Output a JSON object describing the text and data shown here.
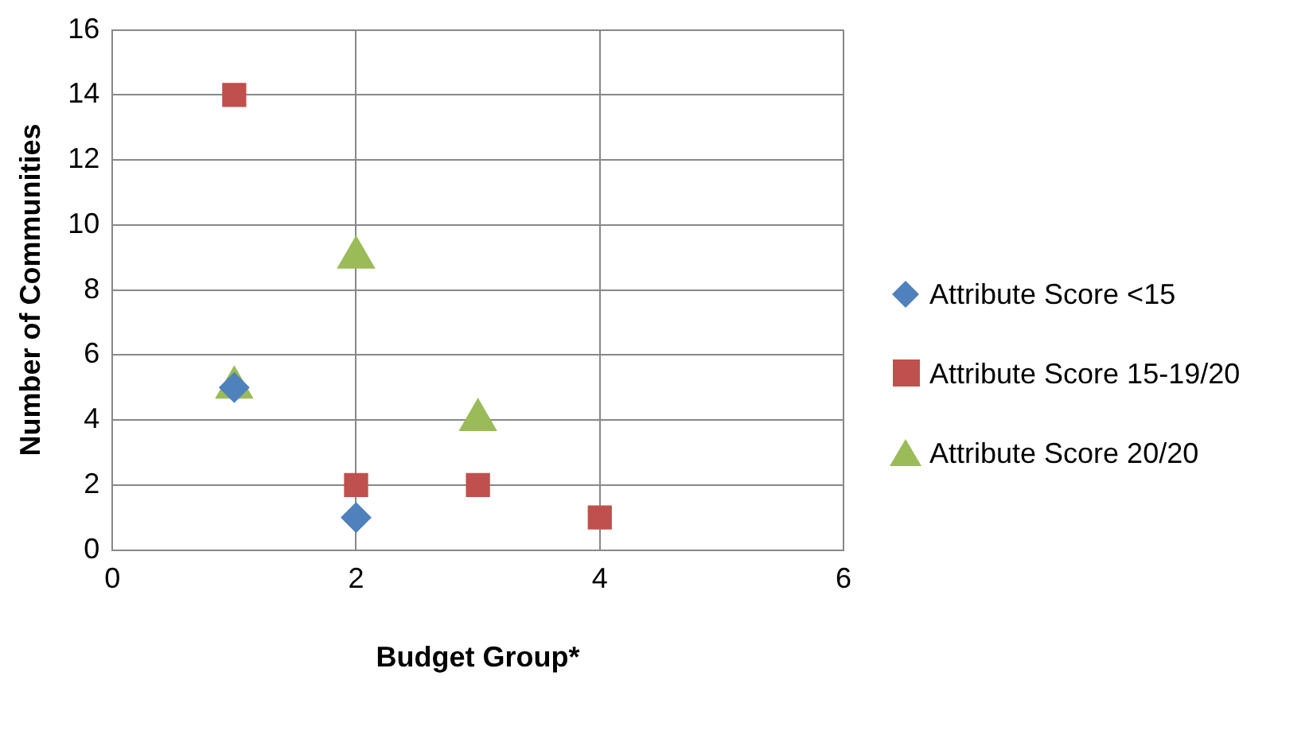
{
  "chart_data": {
    "type": "scatter",
    "xlabel": "Budget Group*",
    "ylabel": "Number of Communities",
    "xlim": [
      0,
      6
    ],
    "xticks": [
      0,
      2,
      4,
      6
    ],
    "ylim": [
      0,
      16
    ],
    "yticks": [
      0,
      2,
      4,
      6,
      8,
      10,
      12,
      14,
      16
    ],
    "grid": true,
    "legend": "right",
    "series": [
      {
        "name": "Attribute Score <15",
        "color": "#4f81bd",
        "marker": "diamond",
        "x": [
          1,
          2
        ],
        "values": [
          5,
          1
        ]
      },
      {
        "name": "Attribute Score 15-19/20",
        "color": "#c0504d",
        "marker": "square",
        "x": [
          1,
          2,
          3,
          4
        ],
        "values": [
          14,
          2,
          2,
          1
        ]
      },
      {
        "name": "Attribute Score 20/20",
        "color": "#9bbb59",
        "marker": "triangle",
        "x": [
          1,
          2,
          3
        ],
        "values": [
          5,
          9,
          4
        ]
      }
    ]
  }
}
